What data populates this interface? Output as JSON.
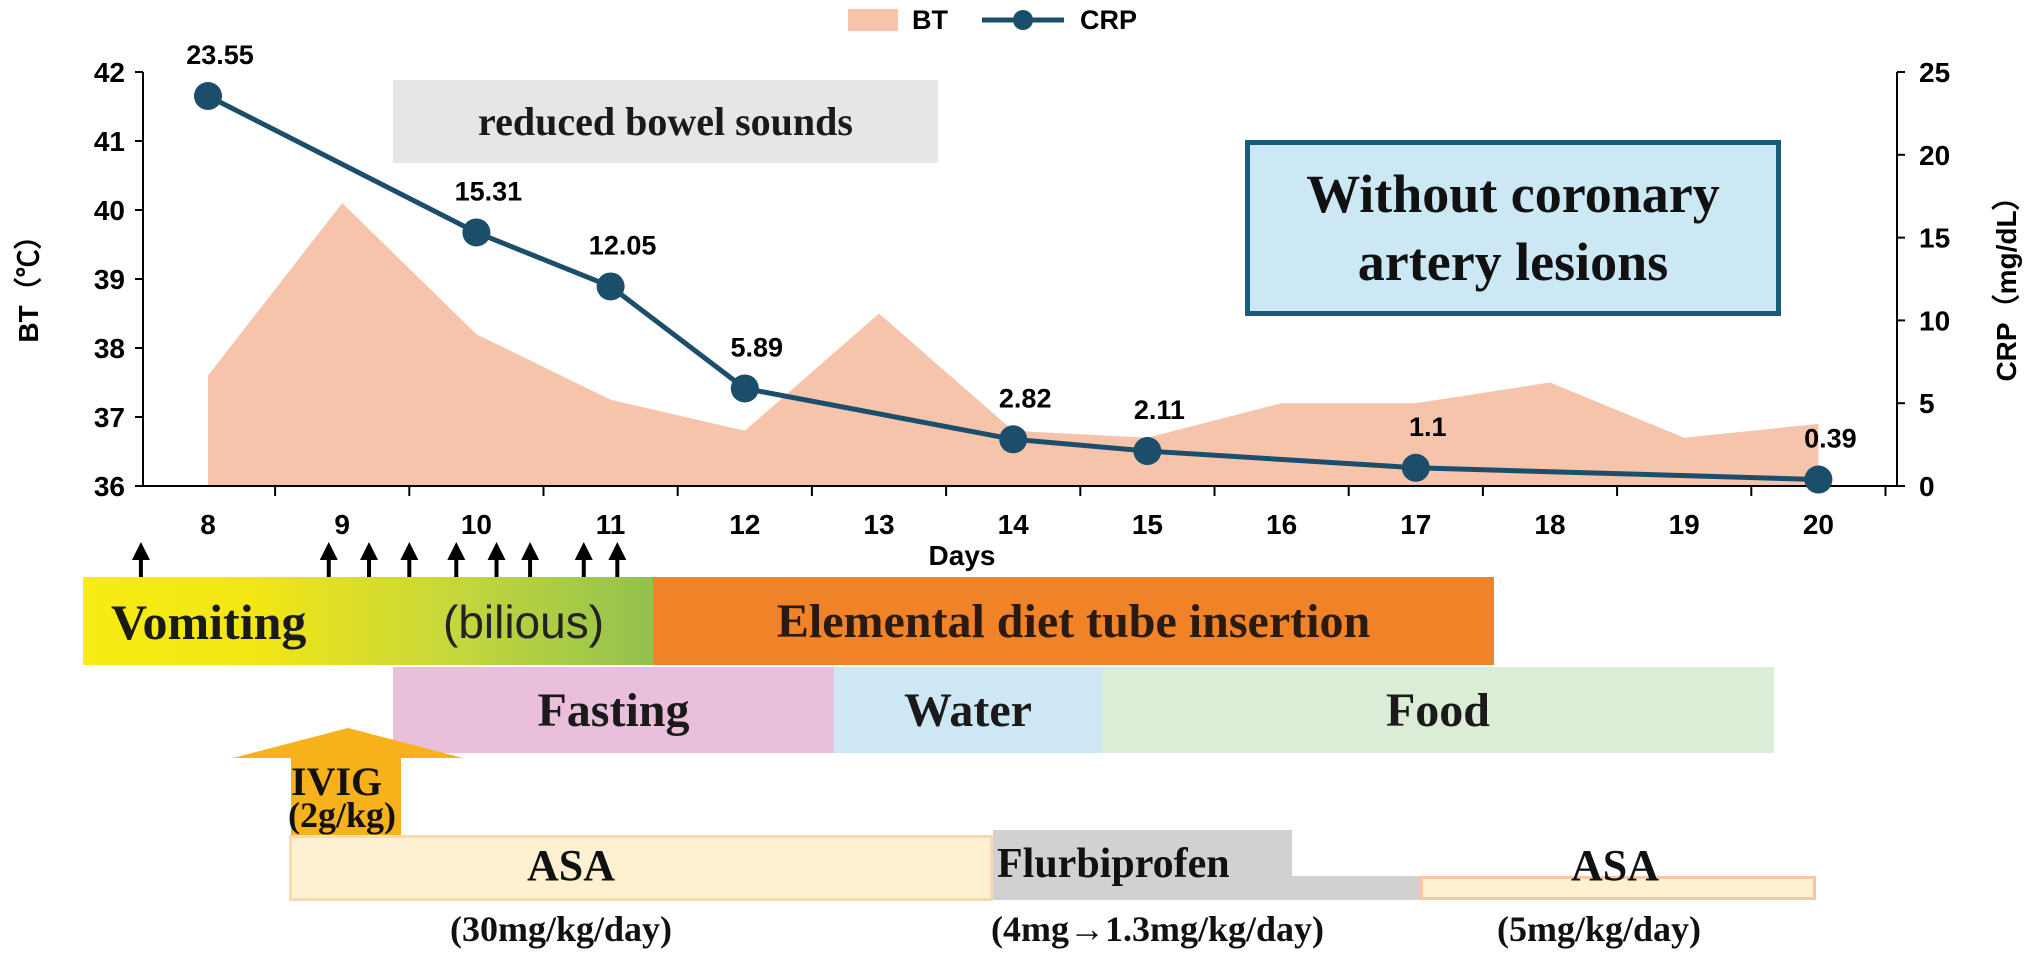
{
  "chart_data": {
    "type": "area+line",
    "legend": [
      {
        "name": "BT",
        "type": "area",
        "color": "#f5c4ab"
      },
      {
        "name": "CRP",
        "type": "line",
        "color": "#1a4e6b"
      }
    ],
    "legend_position": "top-center",
    "xlabel": "Days",
    "ylabel_left": "BT（℃）",
    "ylabel_right": "CRP（mg/dL）",
    "ylim_left": [
      36,
      42
    ],
    "ylim_right": [
      0,
      25
    ],
    "x_ticks": [
      8,
      9,
      10,
      11,
      12,
      13,
      14,
      15,
      16,
      17,
      18,
      19,
      20
    ],
    "y_ticks_left": [
      36,
      37,
      38,
      39,
      40,
      41,
      42
    ],
    "y_ticks_right": [
      0,
      5,
      10,
      15,
      20,
      25
    ],
    "bt_series": {
      "name": "BT",
      "x": [
        8,
        9,
        10,
        11,
        12,
        13,
        14,
        15,
        16,
        17,
        18,
        19,
        20
      ],
      "values": [
        37.6,
        40.1,
        38.2,
        37.25,
        36.8,
        38.5,
        36.8,
        36.7,
        37.2,
        37.2,
        37.5,
        36.7,
        36.9
      ]
    },
    "crp_series": {
      "name": "CRP",
      "x": [
        8,
        10,
        11,
        12,
        14,
        15,
        17,
        20
      ],
      "values": [
        23.55,
        15.31,
        12.05,
        5.89,
        2.82,
        2.11,
        1.1,
        0.39
      ],
      "labels": [
        "23.55",
        "15.31",
        "12.05",
        "5.89",
        "2.82",
        "2.11",
        "1.1",
        "0.39"
      ]
    },
    "annotations": {
      "bowel": "reduced bowel sounds",
      "coronary": "Without coronary artery lesions"
    },
    "vomiting_day_marks": [
      7.5,
      8.9,
      9.2,
      9.5,
      9.85,
      10.15,
      10.4,
      10.8,
      11.05
    ],
    "colors": {
      "bt_fill": "#f5c4ab",
      "crp_line": "#1a4e6b",
      "annotation_gray": "#e6e6e6",
      "coronary_fill": "#cce8f5",
      "coronary_border": "#1a5b78"
    }
  },
  "timeline": {
    "vomiting": {
      "left": "Vomiting",
      "right": "(bilious)",
      "color_start": "#f7ec13",
      "color_end": "#92c14e"
    },
    "elemental": {
      "label": "Elemental diet tube insertion",
      "color": "#f08228"
    },
    "fasting": {
      "label": "Fasting",
      "color": "#e9bfdc"
    },
    "water": {
      "label": "Water",
      "color": "#cde8f4"
    },
    "food": {
      "label": "Food",
      "color": "#dbedd6"
    },
    "ivig": {
      "line1": "IVIG",
      "line2": "(2g/kg)",
      "color": "#f7b21b"
    },
    "asa1": {
      "label": "ASA",
      "dose": "(30mg/kg/day)",
      "color": "#fdf1d2"
    },
    "flurbiprofen": {
      "label": "Flurbiprofen",
      "dose": "(4mg→1.3mg/kg/day)",
      "color": "#d1d1d1"
    },
    "asa2": {
      "label": "ASA",
      "dose": "(5mg/kg/day)",
      "color": "#fdf1d2"
    }
  }
}
